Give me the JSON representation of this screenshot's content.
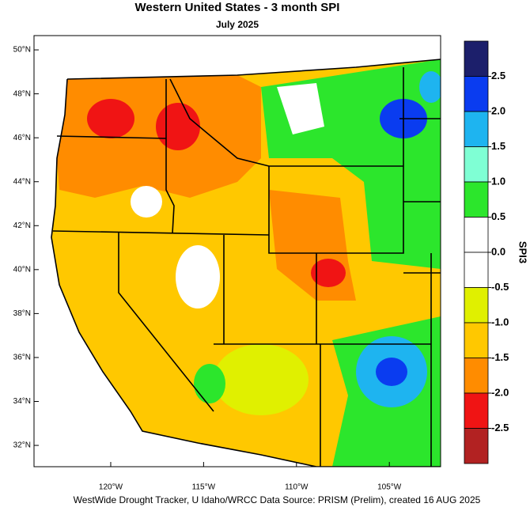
{
  "title": "Western United States - 3 month SPI",
  "subtitle": "July 2025",
  "map": {
    "lat_range": [
      31.03,
      50.65
    ],
    "lon_range": [
      -124.13,
      -102.24
    ],
    "lat_ticks": [
      {
        "value": 50,
        "label": "50°N"
      },
      {
        "value": 48,
        "label": "48°N"
      },
      {
        "value": 46,
        "label": "46°N"
      },
      {
        "value": 44,
        "label": "44°N"
      },
      {
        "value": 42,
        "label": "42°N"
      },
      {
        "value": 40,
        "label": "40°N"
      },
      {
        "value": 38,
        "label": "38°N"
      },
      {
        "value": 36,
        "label": "36°N"
      },
      {
        "value": 34,
        "label": "34°N"
      },
      {
        "value": 32,
        "label": "32°N"
      }
    ],
    "lon_ticks": [
      {
        "value": -120,
        "label": "120°W"
      },
      {
        "value": -115,
        "label": "115°W"
      },
      {
        "value": -110,
        "label": "110°W"
      },
      {
        "value": -105,
        "label": "105°W"
      }
    ]
  },
  "colorbar": {
    "title": "SPI3",
    "colors": [
      "#1c1f6b",
      "#0a3cf0",
      "#1eb4f0",
      "#7fffd4",
      "#2ce62c",
      "#ffffff",
      "#ffffff",
      "#e0f000",
      "#ffc800",
      "#ff8c00",
      "#f01414",
      "#b22222"
    ],
    "ticks": [
      2.5,
      {
        "value": 2.0,
        "label": "2.0"
      },
      1.5,
      {
        "value": 1.0,
        "label": "1.0"
      },
      0.5,
      {
        "value": 0.0,
        "label": "0.0"
      },
      -0.5,
      {
        "value": -1.0,
        "label": "-1.0"
      },
      -1.5,
      {
        "value": -2.0,
        "label": "-2.0"
      },
      -2.5
    ]
  },
  "footer": "WestWide Drought Tracker, U Idaho/WRCC Data Source: PRISM (Prelim), created 16 AUG 2025"
}
